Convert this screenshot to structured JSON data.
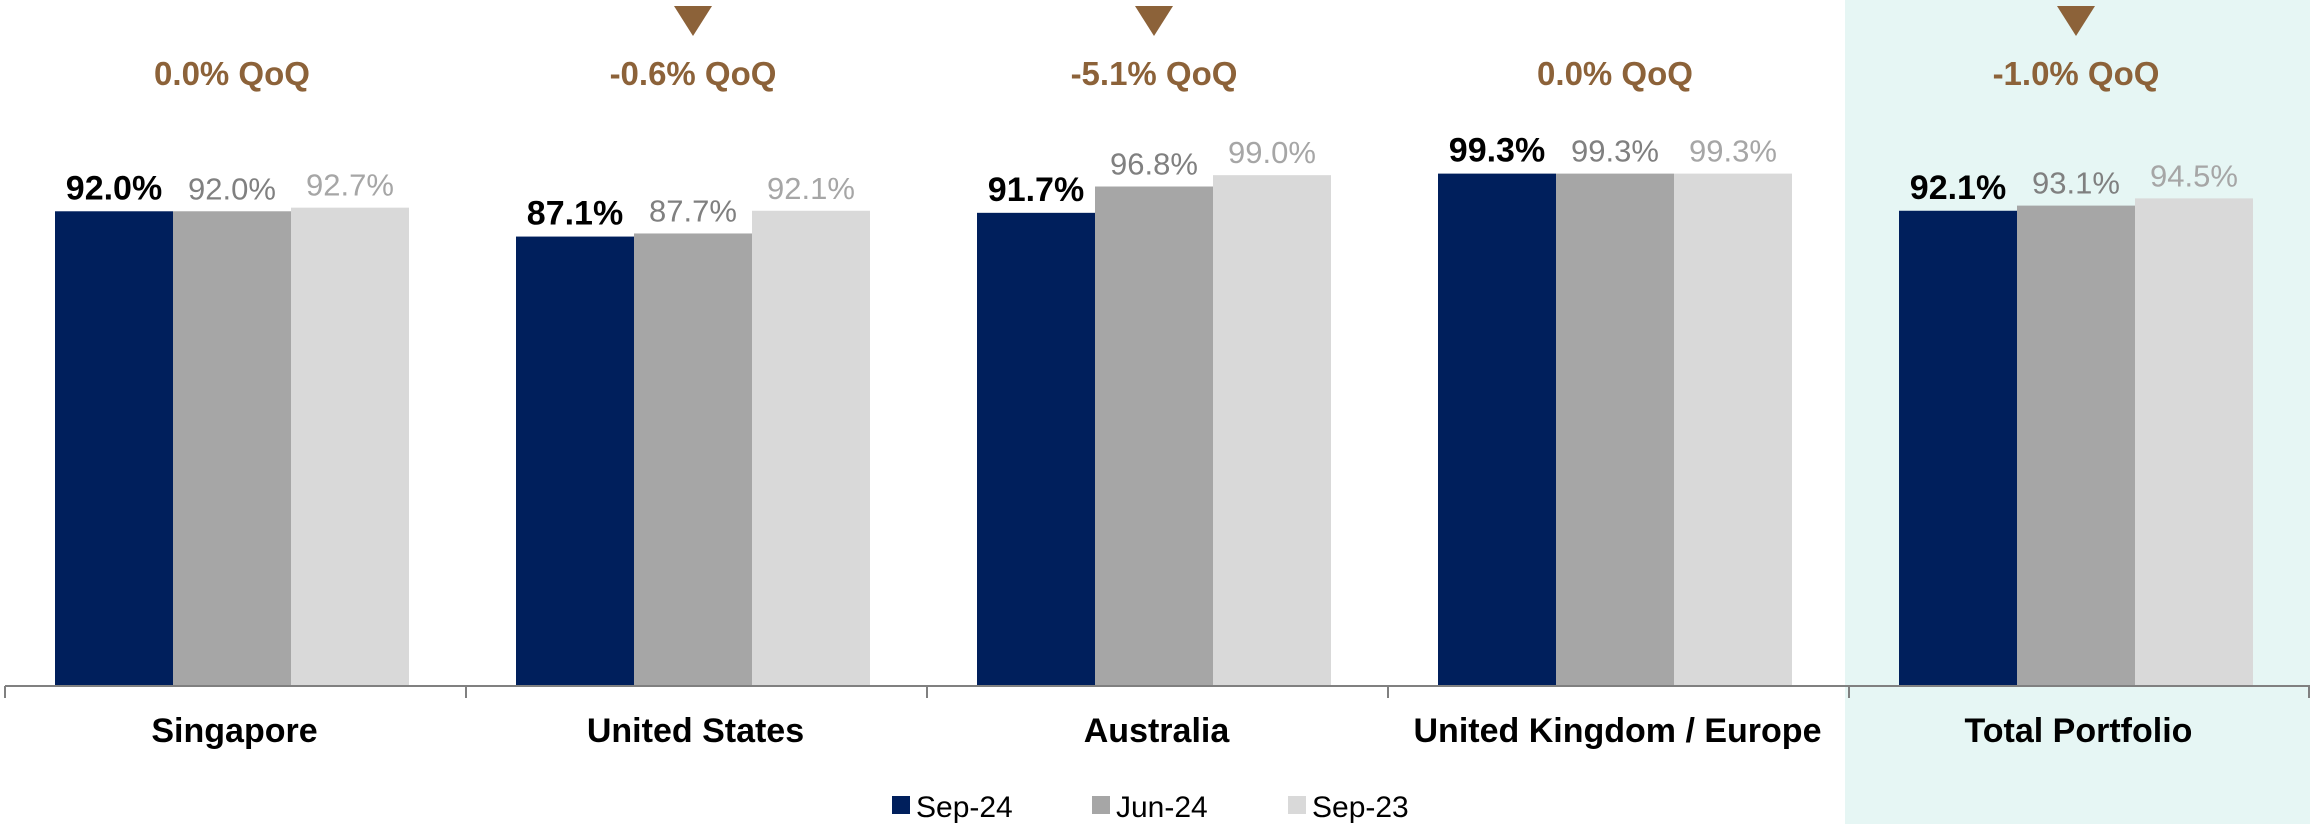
{
  "chart_data": {
    "type": "bar",
    "categories": [
      "Singapore",
      "United States",
      "Australia",
      "United Kingdom / Europe",
      "Total Portfolio"
    ],
    "series": [
      {
        "name": "Sep-24",
        "values": [
          92.0,
          87.1,
          91.7,
          99.3,
          92.1
        ],
        "labels": [
          "92.0%",
          "87.1%",
          "91.7%",
          "99.3%",
          "92.1%"
        ],
        "color": "#001f5c",
        "label_color": "#000000"
      },
      {
        "name": "Jun-24",
        "values": [
          92.0,
          87.7,
          96.8,
          99.3,
          93.1
        ],
        "labels": [
          "92.0%",
          "87.7%",
          "96.8%",
          "99.3%",
          "93.1%"
        ],
        "color": "#a6a6a6",
        "label_color": "#808080"
      },
      {
        "name": "Sep-23",
        "values": [
          92.7,
          92.1,
          99.0,
          99.3,
          94.5
        ],
        "labels": [
          "92.7%",
          "92.1%",
          "99.0%",
          "99.3%",
          "94.5%"
        ],
        "color": "#d9d9d9",
        "label_color": "#a6a6a6"
      }
    ],
    "qoq": [
      {
        "text": "0.0% QoQ",
        "arrow": "none"
      },
      {
        "text": "-0.6% QoQ",
        "arrow": "down"
      },
      {
        "text": "-5.1% QoQ",
        "arrow": "down"
      },
      {
        "text": "0.0% QoQ",
        "arrow": "none"
      },
      {
        "text": "-1.0% QoQ",
        "arrow": "down"
      }
    ],
    "qoq_color": "#8c6239",
    "highlight_category": "Total Portfolio",
    "highlight_color": "#e6f6f4",
    "ylim": [
      0,
      100
    ],
    "grid": false,
    "legend_position": "bottom-center",
    "title": "",
    "xlabel": "",
    "ylabel": ""
  }
}
